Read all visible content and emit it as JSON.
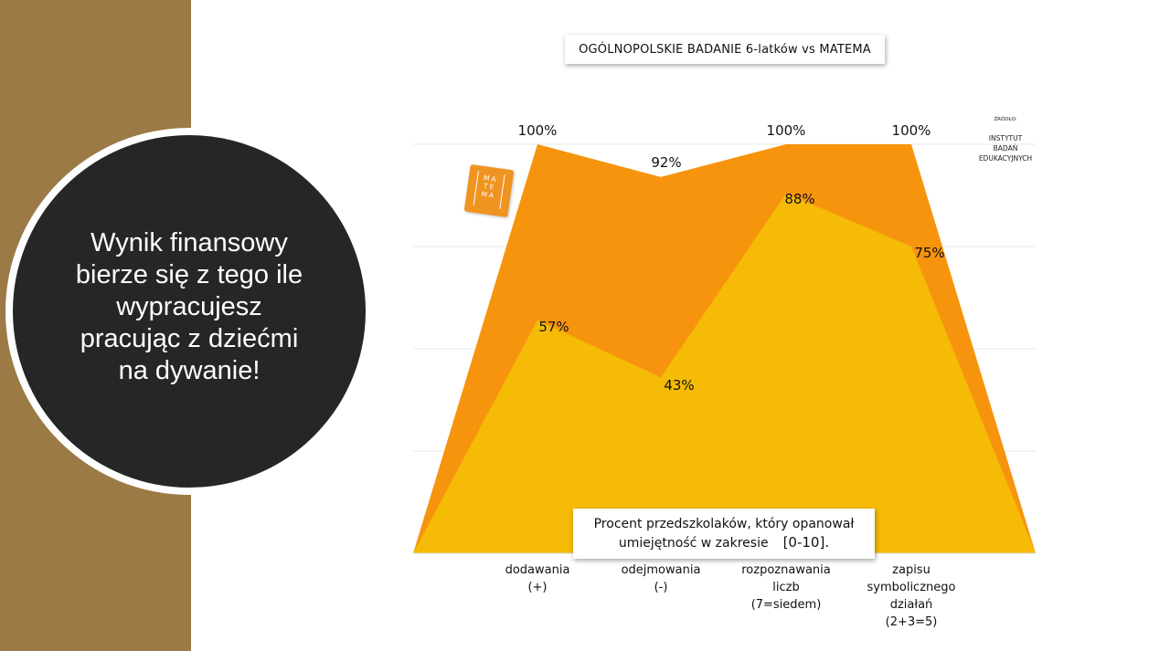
{
  "slide": {
    "circle_text": "Wynik finansowy\nbierze się z tego ile\nwypracujesz\npracując z dziećmi\nna dywanie!",
    "sidebar_color": "#9c7a46"
  },
  "source": {
    "label": "ŹRÓDŁO:",
    "name": "INSTYTUT\nBADAŃ\nEDUKACYJNYCH"
  },
  "logo": {
    "text": "MA\nTE\nMA",
    "color": "#f09421"
  },
  "legend": {
    "line1": "Procent przedszkolaków, który opanował",
    "line2": "umiejętność w zakresie",
    "range": "[0-10]."
  },
  "chart_data": {
    "type": "area",
    "title": "OGÓLNOPOLSKIE BADANIE 6-latków vs MATEMA",
    "categories": [
      "dodawania\n(+)",
      "odejmowania\n(-)",
      "rozpoznawania\nliczb\n(7=siedem)",
      "zapisu\nsymbolicznego\ndziałań\n(2+3=5)"
    ],
    "series": [
      {
        "values": [
          100,
          92,
          100,
          100
        ],
        "labels": [
          "100%",
          "92%",
          "100%",
          "100%"
        ],
        "color": "#f7940d"
      },
      {
        "values": [
          57,
          43,
          88,
          75
        ],
        "labels": [
          "57%",
          "43%",
          "88%",
          "75%"
        ],
        "color": "#f5bb07"
      }
    ],
    "ylim": [
      0,
      100
    ],
    "grid": true,
    "legend_position": "bottom"
  }
}
